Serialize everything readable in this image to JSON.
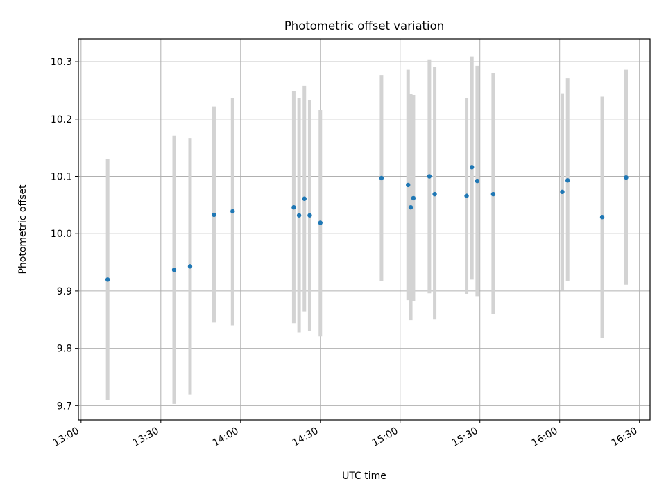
{
  "chart_data": {
    "type": "scatter",
    "title": "Photometric offset variation",
    "xlabel": "UTC time",
    "ylabel": "Photometric offset",
    "x_unit": "time_of_day",
    "xlim": [
      "12:59",
      "16:34"
    ],
    "ylim": [
      9.675,
      10.34
    ],
    "x_ticks": [
      "13:00",
      "13:30",
      "14:00",
      "14:30",
      "15:00",
      "15:30",
      "16:00",
      "16:30"
    ],
    "y_ticks": [
      9.7,
      9.8,
      9.9,
      10.0,
      10.1,
      10.2,
      10.3
    ],
    "y_tick_labels": [
      "9.7",
      "9.8",
      "9.9",
      "10.0",
      "10.1",
      "10.2",
      "10.3"
    ],
    "grid": true,
    "legend": "none",
    "colors": {
      "point": "#1f77b4",
      "errorbar": "#d3d3d3",
      "grid": "#b0b0b0"
    },
    "series": [
      {
        "points": [
          {
            "x": "13:10",
            "y": 9.92,
            "y_low": 9.71,
            "y_high": 10.13
          },
          {
            "x": "13:35",
            "y": 9.937,
            "y_low": 9.703,
            "y_high": 10.171
          },
          {
            "x": "13:41",
            "y": 9.943,
            "y_low": 9.719,
            "y_high": 10.167
          },
          {
            "x": "13:50",
            "y": 10.033,
            "y_low": 9.845,
            "y_high": 10.222
          },
          {
            "x": "13:57",
            "y": 10.039,
            "y_low": 9.84,
            "y_high": 10.237
          },
          {
            "x": "14:20",
            "y": 10.046,
            "y_low": 9.844,
            "y_high": 10.249
          },
          {
            "x": "14:22",
            "y": 10.032,
            "y_low": 9.828,
            "y_high": 10.237
          },
          {
            "x": "14:24",
            "y": 10.061,
            "y_low": 9.864,
            "y_high": 10.258
          },
          {
            "x": "14:26",
            "y": 10.032,
            "y_low": 9.831,
            "y_high": 10.233
          },
          {
            "x": "14:30",
            "y": 10.019,
            "y_low": 9.821,
            "y_high": 10.216
          },
          {
            "x": "14:53",
            "y": 10.097,
            "y_low": 9.918,
            "y_high": 10.277
          },
          {
            "x": "15:03",
            "y": 10.085,
            "y_low": 9.884,
            "y_high": 10.286
          },
          {
            "x": "15:04",
            "y": 10.046,
            "y_low": 9.849,
            "y_high": 10.244
          },
          {
            "x": "15:05",
            "y": 10.062,
            "y_low": 9.883,
            "y_high": 10.242
          },
          {
            "x": "15:11",
            "y": 10.1,
            "y_low": 9.896,
            "y_high": 10.304
          },
          {
            "x": "15:13",
            "y": 10.069,
            "y_low": 9.85,
            "y_high": 10.291
          },
          {
            "x": "15:25",
            "y": 10.066,
            "y_low": 9.895,
            "y_high": 10.237
          },
          {
            "x": "15:27",
            "y": 10.116,
            "y_low": 9.92,
            "y_high": 10.309
          },
          {
            "x": "15:29",
            "y": 10.092,
            "y_low": 9.891,
            "y_high": 10.293
          },
          {
            "x": "15:35",
            "y": 10.069,
            "y_low": 9.86,
            "y_high": 10.28
          },
          {
            "x": "16:01",
            "y": 10.073,
            "y_low": 9.901,
            "y_high": 10.245
          },
          {
            "x": "16:03",
            "y": 10.093,
            "y_low": 9.917,
            "y_high": 10.271
          },
          {
            "x": "16:16",
            "y": 10.029,
            "y_low": 9.818,
            "y_high": 10.239
          },
          {
            "x": "16:25",
            "y": 10.098,
            "y_low": 9.911,
            "y_high": 10.286
          }
        ]
      }
    ]
  }
}
